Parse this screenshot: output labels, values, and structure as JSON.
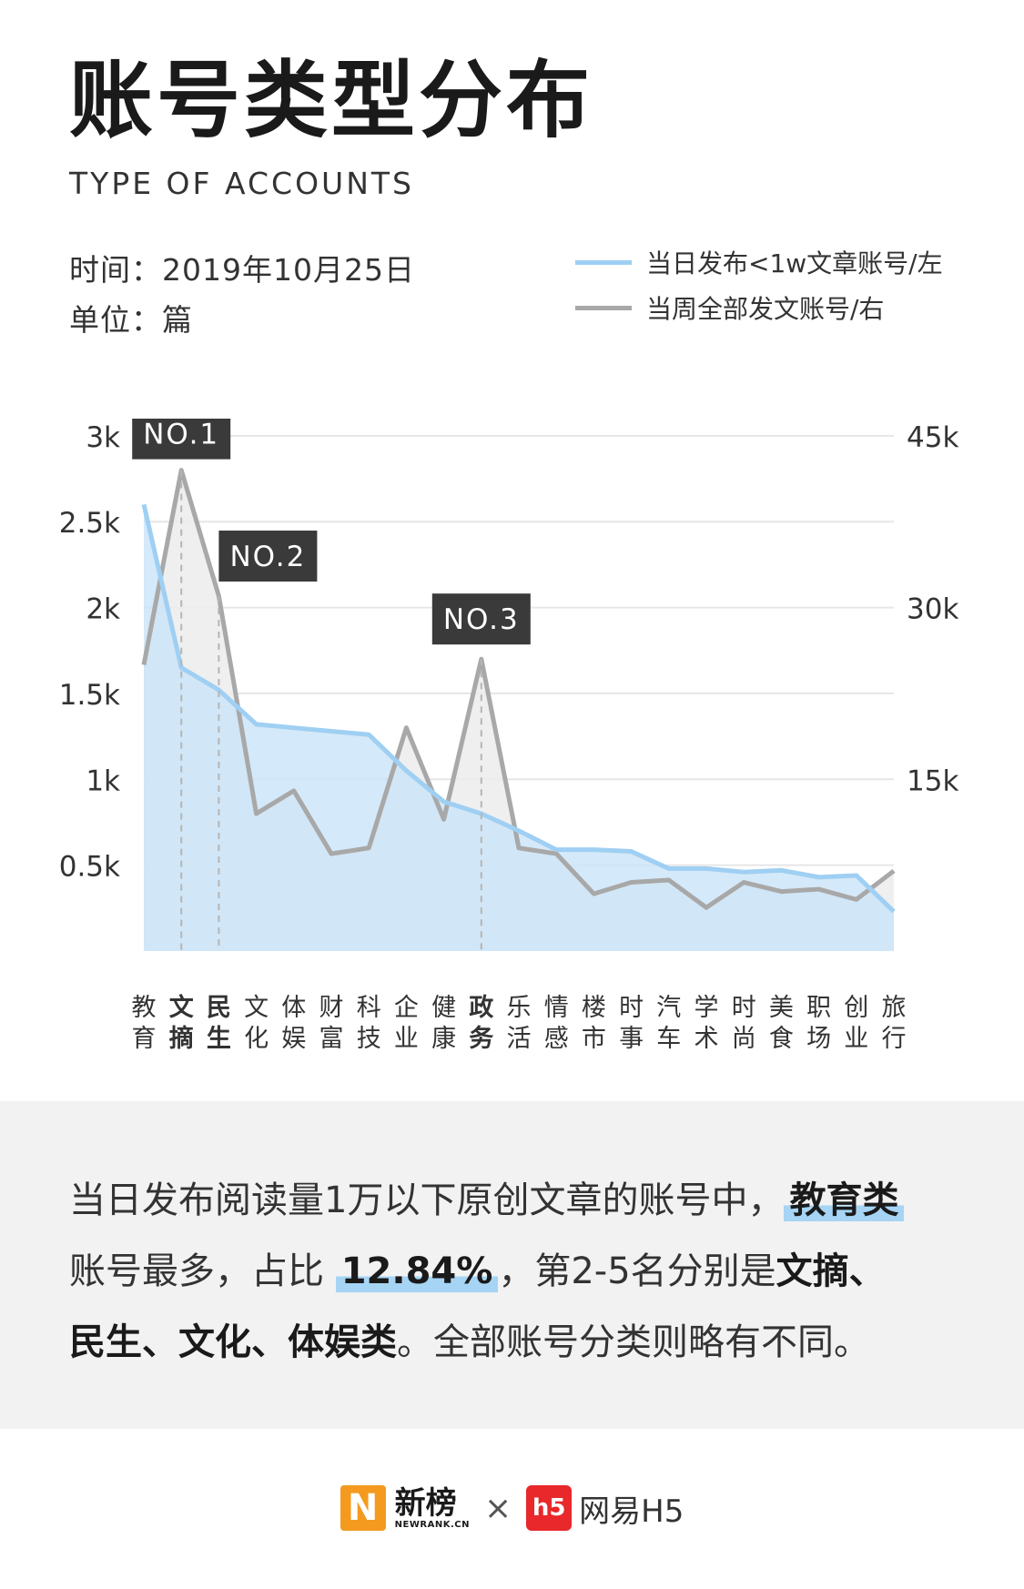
{
  "header": {
    "title": "账号类型分布",
    "subtitle": "TYPE OF ACCOUNTS",
    "date": "时间：2019年10月25日",
    "unit": "单位：篇"
  },
  "legend": {
    "left_label": "当日发布<1w文章账号/左",
    "right_label": "当周全部发文账号/右",
    "left_color": "#9fcff3",
    "right_color": "#a8a8a8"
  },
  "chart_data": {
    "type": "line",
    "categories": [
      "教育",
      "文摘",
      "民生",
      "文化",
      "体娱",
      "财富",
      "科技",
      "企业",
      "健康",
      "政务",
      "乐活",
      "情感",
      "楼市",
      "时事",
      "汽车",
      "学术",
      "时尚",
      "美食",
      "职场",
      "创业",
      "旅行"
    ],
    "category_lines": [
      [
        "教",
        "育"
      ],
      [
        "文",
        "摘"
      ],
      [
        "民",
        "生"
      ],
      [
        "文",
        "化"
      ],
      [
        "体",
        "娱"
      ],
      [
        "财",
        "富"
      ],
      [
        "科",
        "技"
      ],
      [
        "企",
        "业"
      ],
      [
        "健",
        "康"
      ],
      [
        "政",
        "务"
      ],
      [
        "乐",
        "活"
      ],
      [
        "情",
        "感"
      ],
      [
        "楼",
        "市"
      ],
      [
        "时",
        "事"
      ],
      [
        "汽",
        "车"
      ],
      [
        "学",
        "术"
      ],
      [
        "时",
        "尚"
      ],
      [
        "美",
        "食"
      ],
      [
        "职",
        "场"
      ],
      [
        "创",
        "业"
      ],
      [
        "旅",
        "行"
      ]
    ],
    "bold_categories": [
      "文摘",
      "民生",
      "政务"
    ],
    "series": [
      {
        "axis": "left",
        "values": [
          2600,
          1650,
          1520,
          1320,
          1300,
          1280,
          1260,
          1050,
          870,
          800,
          700,
          590,
          590,
          580,
          480,
          480,
          460,
          470,
          430,
          440,
          230
        ]
      },
      {
        "axis": "right",
        "values": [
          25000,
          42000,
          31000,
          12000,
          14000,
          8500,
          9000,
          19500,
          11500,
          25500,
          9000,
          8500,
          5000,
          6000,
          6200,
          3800,
          6000,
          5200,
          5400,
          4500,
          7000
        ]
      }
    ],
    "left_axis": {
      "ticks": [
        "0.5k",
        "1k",
        "1.5k",
        "2k",
        "2.5k",
        "3k"
      ],
      "tick_values": [
        500,
        1000,
        1500,
        2000,
        2500,
        3000
      ],
      "range": [
        0,
        3100
      ]
    },
    "right_axis": {
      "ticks": [
        "15k",
        "30k",
        "45k"
      ],
      "tick_values": [
        15000,
        30000,
        45000
      ],
      "range": [
        0,
        46500
      ]
    },
    "annotations": [
      {
        "label": "NO.1",
        "index": 1
      },
      {
        "label": "NO.2",
        "index": 2
      },
      {
        "label": "NO.3",
        "index": 9
      }
    ],
    "grid": true
  },
  "summary": {
    "p1": "当日发布阅读量1万以下原创文章的账号中，",
    "h1": "教育类",
    "p2": "账号最多，占比",
    "h2": "12.84%",
    "p3": "，第2-5名分别是",
    "b1": "文摘、",
    "b2": "民生、文化、体娱类",
    "p4": "。全部账号分类则略有不同。"
  },
  "footer": {
    "brand1_mark": "N",
    "brand1_zh": "新榜",
    "brand1_en": "NEWRANK.CN",
    "times": "×",
    "brand2_mark": "h5",
    "brand2": "网易H5"
  }
}
